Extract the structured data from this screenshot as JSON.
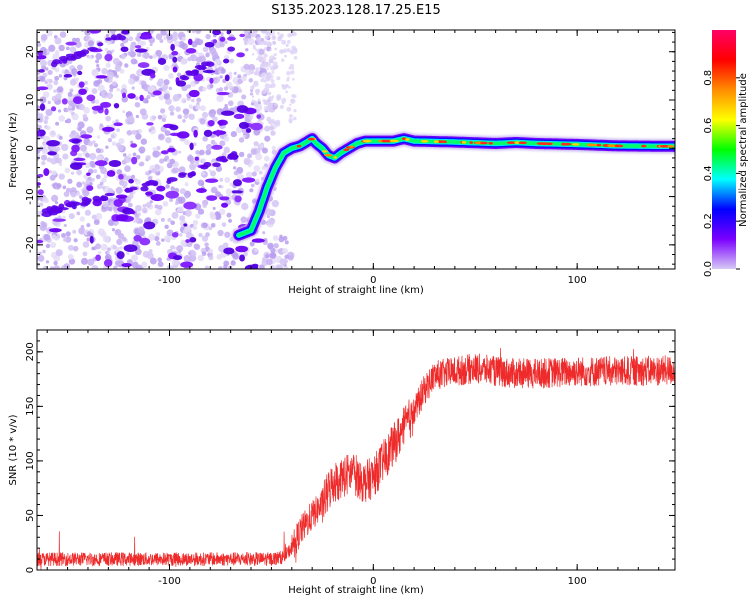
{
  "title": "S135.2023.128.17.25.E15",
  "chart_data": [
    {
      "type": "heatmap",
      "xlabel": "Height of straight line (km)",
      "ylabel": "Frequency (Hz)",
      "xlim": [
        -165,
        148
      ],
      "ylim": [
        -25,
        24.5
      ],
      "xticks": [
        -100,
        0,
        100
      ],
      "yticks": [
        -20,
        -10,
        0,
        10,
        20
      ],
      "grid": false,
      "ridge": {
        "x": [
          -66,
          -60,
          -56,
          -52,
          -48,
          -44,
          -40,
          -36,
          -32,
          -30,
          -28,
          -25,
          -22,
          -19,
          -16,
          -12,
          -8,
          -4,
          0,
          10,
          15,
          20,
          40,
          60,
          70,
          80,
          100,
          120,
          148
        ],
        "y": [
          -18,
          -17,
          -13,
          -8,
          -4,
          -1,
          0,
          0.5,
          1.5,
          2,
          1,
          0,
          -1.5,
          -2,
          -1,
          0,
          1,
          1.5,
          1.5,
          1.5,
          2,
          1.5,
          1.3,
          1,
          1.2,
          1,
          0.8,
          0.5,
          0.4
        ]
      },
      "colorbar": {
        "label": "Normalized spectral amplitude",
        "range": [
          0,
          1
        ],
        "ticks": [
          "0.0",
          "0.2",
          "0.4",
          "0.6",
          "0.8"
        ],
        "colors": [
          "#d7c9f5",
          "#7a00ff",
          "#0000ff",
          "#00ffff",
          "#00ff00",
          "#ffff00",
          "#ff8c00",
          "#ff0000",
          "#ff0066"
        ]
      }
    },
    {
      "type": "line",
      "xlabel": "Height of straight line (km)",
      "ylabel": "SNR (10 * v/v)",
      "xlim": [
        -165,
        148
      ],
      "ylim": [
        0,
        220
      ],
      "xticks": [
        -100,
        0,
        100
      ],
      "yticks": [
        0,
        50,
        100,
        150,
        200
      ],
      "color": "#ee2a2a",
      "envelope": {
        "x": [
          -165,
          -50,
          -44,
          -40,
          -36,
          -30,
          -25,
          -20,
          -15,
          -10,
          -5,
          0,
          5,
          10,
          15,
          20,
          25,
          30,
          40,
          50,
          60,
          70,
          80,
          100,
          120,
          148
        ],
        "y": [
          10,
          10,
          12,
          20,
          35,
          50,
          60,
          80,
          85,
          90,
          80,
          85,
          100,
          115,
          130,
          145,
          165,
          178,
          182,
          185,
          182,
          180,
          180,
          182,
          182,
          183
        ]
      },
      "noise_amplitude": 7
    }
  ]
}
